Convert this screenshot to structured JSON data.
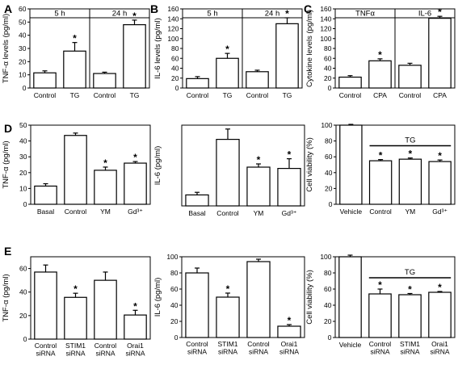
{
  "chart_data": [
    {
      "id": "A",
      "panel_label": "A",
      "type": "bar",
      "ylabel": "TNF-α levels (pg/ml)",
      "ylim": [
        0,
        60
      ],
      "yticks": [
        "0",
        "10",
        "20",
        "30",
        "40",
        "50",
        "60"
      ],
      "categories": [
        "Control",
        "TG",
        "Control",
        "TG"
      ],
      "values": [
        11.5,
        28,
        11,
        48
      ],
      "errors": [
        1.5,
        6.5,
        1,
        3.5
      ],
      "significant": [
        false,
        true,
        false,
        true
      ],
      "groups": [
        {
          "label": "5 h",
          "span": [
            0,
            1
          ]
        },
        {
          "label": "24 h",
          "span": [
            2,
            3
          ]
        }
      ]
    },
    {
      "id": "B",
      "panel_label": "B",
      "type": "bar",
      "ylabel": "IL-6 levels (pg/ml)",
      "ylim": [
        0,
        160
      ],
      "yticks": [
        "0",
        "20",
        "40",
        "60",
        "80",
        "100",
        "120",
        "140",
        "160"
      ],
      "categories": [
        "Control",
        "TG",
        "Control",
        "TG"
      ],
      "values": [
        19,
        60,
        33,
        130
      ],
      "errors": [
        4,
        10,
        3,
        12
      ],
      "significant": [
        false,
        true,
        false,
        true
      ],
      "groups": [
        {
          "label": "5 h",
          "span": [
            0,
            1
          ]
        },
        {
          "label": "24 h",
          "span": [
            2,
            3
          ]
        }
      ]
    },
    {
      "id": "C",
      "panel_label": "C",
      "type": "bar",
      "ylabel": "Cytokine levels (pg/ml)",
      "ylim": [
        0,
        160
      ],
      "yticks": [
        "0",
        "20",
        "40",
        "60",
        "80",
        "100",
        "120",
        "140",
        "160"
      ],
      "categories": [
        "Control",
        "CPA",
        "Control",
        "CPA"
      ],
      "values": [
        22,
        55,
        46,
        141
      ],
      "errors": [
        3,
        4,
        4,
        4
      ],
      "significant": [
        false,
        true,
        false,
        true
      ],
      "groups": [
        {
          "label": "TNFα",
          "span": [
            0,
            1
          ]
        },
        {
          "label": "IL-6",
          "span": [
            2,
            3
          ]
        }
      ]
    },
    {
      "id": "D1",
      "panel_label": "D",
      "type": "bar",
      "ylabel": "TNF-α (pg/ml)",
      "ylim": [
        0,
        50
      ],
      "yticks": [
        "0",
        "10",
        "20",
        "30",
        "40",
        "50"
      ],
      "categories": [
        "Basal",
        "Control",
        "YM",
        "Gd³⁺"
      ],
      "values": [
        11.5,
        43.5,
        21.5,
        26
      ],
      "errors": [
        1.5,
        1.5,
        2,
        1
      ],
      "significant": [
        false,
        false,
        true,
        true
      ],
      "groups": []
    },
    {
      "id": "D2",
      "panel_label": "",
      "type": "bar",
      "ylabel": "IL-6 (pg/ml)",
      "ylim": [
        0,
        125
      ],
      "yticks": [],
      "categories": [
        "Basal",
        "Control",
        "YM",
        "Gd³⁺"
      ],
      "values": [
        17,
        103,
        60,
        58
      ],
      "errors": [
        4,
        16,
        5,
        15
      ],
      "significant": [
        false,
        false,
        true,
        true
      ],
      "groups": []
    },
    {
      "id": "D3",
      "panel_label": "",
      "type": "bar",
      "ylabel": "Cell viability (%)",
      "ylim": [
        0,
        100
      ],
      "yticks": [
        "0",
        "20",
        "40",
        "60",
        "80",
        "100"
      ],
      "categories": [
        "Vehicle",
        "Control",
        "YM",
        "Gd³⁺"
      ],
      "values": [
        100,
        55,
        57,
        54
      ],
      "errors": [
        1,
        1.5,
        1.5,
        2
      ],
      "significant": [
        false,
        true,
        true,
        true
      ],
      "groups": [],
      "bracket": {
        "label": "TG",
        "span": [
          1,
          3
        ]
      }
    },
    {
      "id": "E1",
      "panel_label": "E",
      "type": "bar",
      "ylabel": "TNF-α (pg/ml)",
      "ylim": [
        0,
        70
      ],
      "yticks": [
        "0",
        "20",
        "40",
        "60"
      ],
      "categories": [
        [
          "Control",
          "siRNA"
        ],
        [
          "STIM1",
          "siRNA"
        ],
        [
          "Control",
          "siRNA"
        ],
        [
          "Orai1",
          "siRNA"
        ]
      ],
      "values": [
        57,
        35.5,
        50,
        20.5
      ],
      "errors": [
        6,
        3.5,
        7,
        4
      ],
      "significant": [
        false,
        true,
        false,
        true
      ],
      "groups": []
    },
    {
      "id": "E2",
      "panel_label": "",
      "type": "bar",
      "ylabel": "IL-6 (pg/ml)",
      "ylim": [
        0,
        100
      ],
      "yticks": [
        "0",
        "20",
        "40",
        "60",
        "80",
        "100"
      ],
      "categories": [
        [
          "Control",
          "siRNA"
        ],
        [
          "STIM1",
          "siRNA"
        ],
        [
          "Control",
          "siRNA"
        ],
        [
          "Orai1",
          "siRNA"
        ]
      ],
      "values": [
        80,
        50,
        94,
        14
      ],
      "errors": [
        6,
        5,
        3,
        2
      ],
      "significant": [
        false,
        true,
        false,
        true
      ],
      "groups": []
    },
    {
      "id": "E3",
      "panel_label": "",
      "type": "bar",
      "ylabel": "Cell viability (%)",
      "ylim": [
        0,
        100
      ],
      "yticks": [
        "0",
        "20",
        "40",
        "60",
        "80",
        "100"
      ],
      "categories": [
        "Vehicle",
        [
          "Control",
          "siRNA"
        ],
        [
          "STIM1",
          "siRNA"
        ],
        [
          "Orai1",
          "siRNA"
        ]
      ],
      "values": [
        100,
        54,
        53,
        56
      ],
      "errors": [
        2,
        6,
        1.5,
        1
      ],
      "significant": [
        false,
        true,
        true,
        true
      ],
      "groups": [],
      "bracket": {
        "label": "TG",
        "span": [
          1,
          3
        ]
      }
    }
  ],
  "style": {
    "bar_fill": "#ffffff",
    "stroke": "#000000",
    "significance_mark": "*"
  }
}
